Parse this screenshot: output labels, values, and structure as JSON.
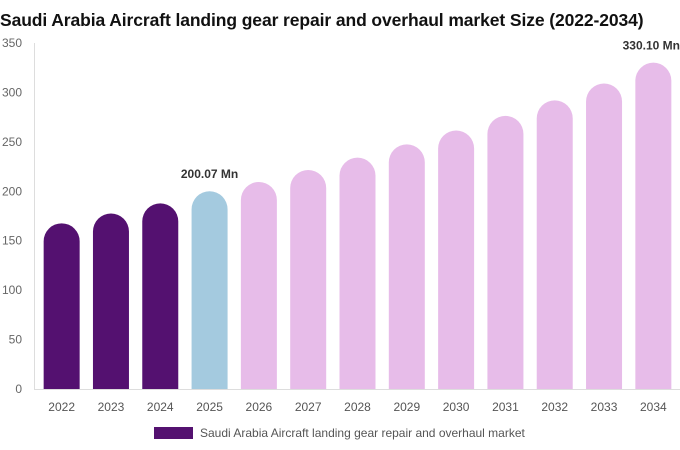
{
  "chart_data": {
    "type": "bar",
    "title": "Saudi Arabia Aircraft landing gear repair and overhaul market Size (2022-2034)",
    "xlabel": "",
    "ylabel": "",
    "categories": [
      "2022",
      "2023",
      "2024",
      "2025",
      "2026",
      "2027",
      "2028",
      "2029",
      "2030",
      "2031",
      "2032",
      "2033",
      "2034"
    ],
    "series": [
      {
        "name": "Saudi Arabia Aircraft landing gear repair and overhaul market",
        "values": [
          167.6,
          177.5,
          187.8,
          200.07,
          209.4,
          221.5,
          234.0,
          247.5,
          261.5,
          276.3,
          292.0,
          309.0,
          330.1
        ]
      }
    ],
    "bar_colors": [
      "#541170",
      "#541170",
      "#541170",
      "#a4cadf",
      "#e7bce9",
      "#e7bce9",
      "#e7bce9",
      "#e7bce9",
      "#e7bce9",
      "#e7bce9",
      "#e7bce9",
      "#e7bce9",
      "#e7bce9"
    ],
    "legend_color": "#541170",
    "ylim": [
      0,
      350
    ],
    "yticks": [
      0,
      50,
      100,
      150,
      200,
      250,
      300,
      350
    ],
    "grid": false,
    "legend_position": "bottom",
    "annotations": [
      {
        "category": "2025",
        "text": "200.07 Mn"
      },
      {
        "category": "2034",
        "text": "330.10 Mn"
      }
    ]
  }
}
